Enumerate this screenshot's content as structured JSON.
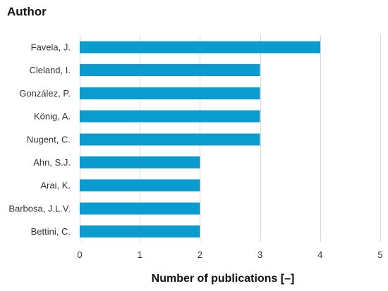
{
  "chart_data": {
    "type": "bar",
    "orientation": "horizontal",
    "title": "",
    "ylabel": "Author",
    "xlabel": "Number of publications [–]",
    "categories": [
      "Favela, J.",
      "Cleland, I.",
      "González, P.",
      "König, A.",
      "Nugent, C.",
      "Ahn, S.J.",
      "Arai, K.",
      "Barbosa, J.L.V.",
      "Bettini, C."
    ],
    "values": [
      4,
      3,
      3,
      3,
      3,
      2,
      2,
      2,
      2
    ],
    "xlim": [
      0,
      5
    ],
    "xticks": [
      "0",
      "1",
      "2",
      "3",
      "4",
      "5"
    ],
    "grid": true,
    "bar_color": "#0b9ccf"
  }
}
